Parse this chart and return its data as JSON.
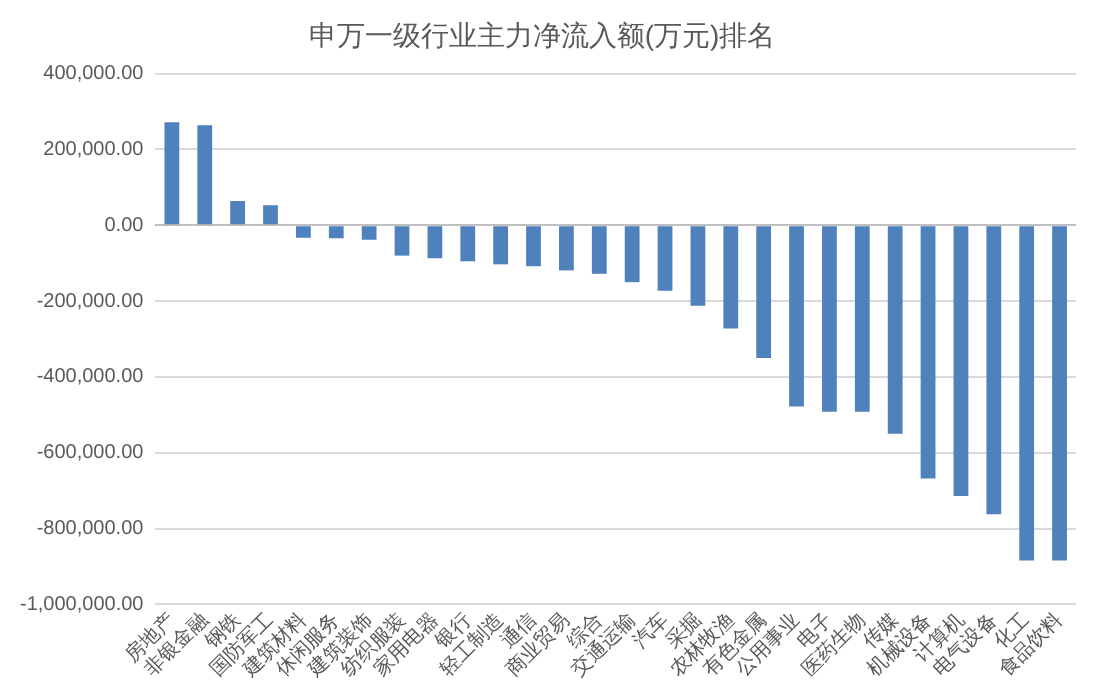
{
  "chart_data": {
    "type": "bar",
    "title": "申万一级行业主力净流入额(万元)排名",
    "categories": [
      "房地产",
      "非银金融",
      "钢铁",
      "国防军工",
      "建筑材料",
      "休闲服务",
      "建筑装饰",
      "纺织服装",
      "家用电器",
      "银行",
      "轻工制造",
      "通信",
      "商业贸易",
      "综合",
      "交通运输",
      "汽车",
      "采掘",
      "农林牧渔",
      "有色金属",
      "公用事业",
      "电子",
      "医药生物",
      "传媒",
      "机械设备",
      "计算机",
      "电气设备",
      "化工",
      "食品饮料"
    ],
    "values": [
      272000,
      264000,
      64000,
      53000,
      -33000,
      -34000,
      -38000,
      -80000,
      -87000,
      -95000,
      -103000,
      -108000,
      -119000,
      -128000,
      -150000,
      -173000,
      -212000,
      -272000,
      -350000,
      -478000,
      -492000,
      -492000,
      -550000,
      -668000,
      -714000,
      -762000,
      -884000,
      -884000
    ],
    "color": "#4f81bd",
    "ylim": [
      -1000000,
      400000
    ],
    "yticks": [
      {
        "value": 400000,
        "label": "400,000.00"
      },
      {
        "value": 200000,
        "label": "200,000.00"
      },
      {
        "value": 0,
        "label": "0.00"
      },
      {
        "value": -200000,
        "label": "-200,000.00"
      },
      {
        "value": -400000,
        "label": "-400,000.00"
      },
      {
        "value": -600000,
        "label": "-600,000.00"
      },
      {
        "value": -800000,
        "label": "-800,000.00"
      },
      {
        "value": -1000000,
        "label": "-1,000,000.00"
      }
    ],
    "grid": "y",
    "legend": false
  }
}
